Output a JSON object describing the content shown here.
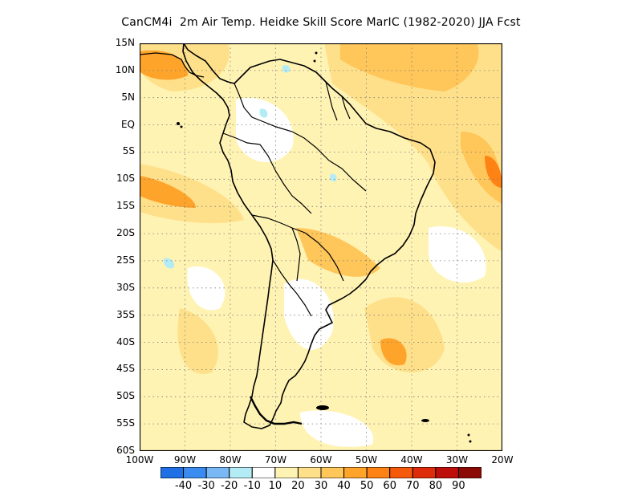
{
  "title": "CanCM4i  2m Air Temp. Heidke Skill Score MarIC (1982-2020) JJA Fcst",
  "lat_ticks": [
    "15N",
    "10N",
    "5N",
    "EQ",
    "5S",
    "10S",
    "15S",
    "20S",
    "25S",
    "30S",
    "35S",
    "40S",
    "45S",
    "50S",
    "55S",
    "60S"
  ],
  "lon_ticks": [
    "100W",
    "90W",
    "80W",
    "70W",
    "60W",
    "50W",
    "40W",
    "30W",
    "20W"
  ],
  "colorbar": {
    "colors": [
      "#1f6fe5",
      "#3a8cf0",
      "#7ab8f5",
      "#b4ecf5",
      "#ffffff",
      "#fff3b4",
      "#ffe08a",
      "#ffc65a",
      "#ffa42a",
      "#ff8215",
      "#f45a0a",
      "#de2c0a",
      "#bd0e0a",
      "#8c0a06"
    ],
    "labels": [
      "-40",
      "-30",
      "-20",
      "-10",
      "10",
      "20",
      "30",
      "40",
      "50",
      "60",
      "70",
      "80",
      "90"
    ]
  },
  "map": {
    "lon_range": [
      -100,
      -20
    ],
    "lat_range": [
      -60,
      15
    ],
    "grid": "dotted"
  }
}
